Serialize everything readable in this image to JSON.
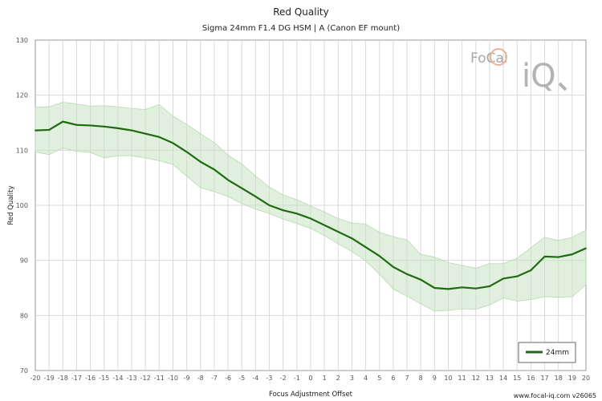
{
  "chart_data": {
    "type": "line",
    "title": "Red Quality",
    "subtitle": "Sigma 24mm F1.4 DG HSM | A (Canon EF mount)",
    "xlabel": "Focus Adjustment Offset",
    "ylabel": "Red Quality",
    "xlim": [
      -20,
      20
    ],
    "ylim": [
      70,
      130
    ],
    "x_ticks": [
      -20,
      -19,
      -18,
      -17,
      -16,
      -15,
      -14,
      -13,
      -12,
      -11,
      -10,
      -9,
      -8,
      -7,
      -6,
      -5,
      -4,
      -3,
      -2,
      -1,
      0,
      1,
      2,
      3,
      4,
      5,
      6,
      7,
      8,
      9,
      10,
      11,
      12,
      13,
      14,
      15,
      16,
      17,
      18,
      19,
      20
    ],
    "y_ticks": [
      70,
      80,
      90,
      100,
      110,
      120,
      130
    ],
    "grid": true,
    "legend_position": "bottom-right",
    "x": [
      -20,
      -19,
      -18,
      -17,
      -16,
      -15,
      -14,
      -13,
      -12,
      -11,
      -10,
      -9,
      -8,
      -7,
      -6,
      -5,
      -4,
      -3,
      -2,
      -1,
      0,
      1,
      2,
      3,
      4,
      5,
      6,
      7,
      8,
      9,
      10,
      11,
      12,
      13,
      14,
      15,
      16,
      17,
      18,
      19,
      20
    ],
    "series": [
      {
        "name": "24mm",
        "color": "#1f6b12",
        "values": [
          113.6,
          113.7,
          115.2,
          114.6,
          114.5,
          114.3,
          114.0,
          113.6,
          113.0,
          112.4,
          111.3,
          109.7,
          107.9,
          106.5,
          104.6,
          103.1,
          101.6,
          100.0,
          99.1,
          98.5,
          97.6,
          96.4,
          95.2,
          94.0,
          92.4,
          90.8,
          88.8,
          87.5,
          86.5,
          85.0,
          84.8,
          85.1,
          84.9,
          85.3,
          86.7,
          87.1,
          88.2,
          90.7,
          90.6,
          91.1,
          92.2
        ],
        "band_upper": [
          117.8,
          117.9,
          118.7,
          118.4,
          118.0,
          118.1,
          117.9,
          117.6,
          117.4,
          118.3,
          116.2,
          114.7,
          113.0,
          111.4,
          109.1,
          107.5,
          105.3,
          103.3,
          101.9,
          101.0,
          99.9,
          98.8,
          97.6,
          96.8,
          96.6,
          95.1,
          94.3,
          93.7,
          91.1,
          90.6,
          89.6,
          89.1,
          88.6,
          89.4,
          89.4,
          90.4,
          92.3,
          94.2,
          93.6,
          94.2,
          95.5
        ],
        "band_lower": [
          109.7,
          109.2,
          110.4,
          109.8,
          109.6,
          108.6,
          109.0,
          109.0,
          108.6,
          108.1,
          107.4,
          105.3,
          103.2,
          102.5,
          101.6,
          100.3,
          99.3,
          98.5,
          97.5,
          96.7,
          95.8,
          94.5,
          93.0,
          91.6,
          89.9,
          87.5,
          84.8,
          83.5,
          82.1,
          80.8,
          80.9,
          81.2,
          81.1,
          81.9,
          83.2,
          82.6,
          82.9,
          83.4,
          83.3,
          83.4,
          85.6
        ]
      }
    ]
  },
  "logo": {
    "text_top": "FoCal",
    "text_bottom": "iQ"
  },
  "credit": "www.focal-iq.com  v26065"
}
